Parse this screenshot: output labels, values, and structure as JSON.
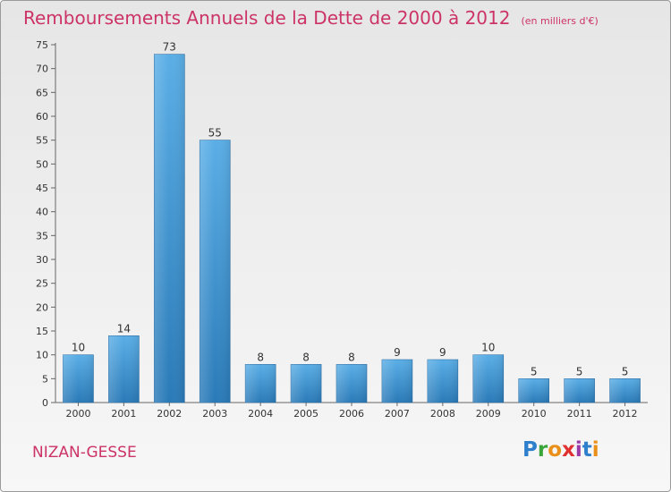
{
  "header": {
    "title": "Remboursements Annuels de la Dette de 2000 à 2012",
    "unit": "(en milliers d'€)"
  },
  "footer": {
    "commune": "NIZAN-GESSE",
    "logo_text": "Proxiti"
  },
  "colors": {
    "title": "#cc3366",
    "bar_top": "#5aaee6",
    "bar_bottom": "#2a7ab8"
  },
  "chart_data": {
    "type": "bar",
    "categories": [
      "2000",
      "2001",
      "2002",
      "2003",
      "2004",
      "2005",
      "2006",
      "2007",
      "2008",
      "2009",
      "2010",
      "2011",
      "2012"
    ],
    "values": [
      10,
      14,
      73,
      55,
      8,
      8,
      8,
      9,
      9,
      10,
      5,
      5,
      5
    ],
    "ylim": [
      0,
      75
    ],
    "yticks": [
      0,
      5,
      10,
      15,
      20,
      25,
      30,
      35,
      40,
      45,
      50,
      55,
      60,
      65,
      70,
      75
    ],
    "grid": false,
    "data_labels": true
  }
}
